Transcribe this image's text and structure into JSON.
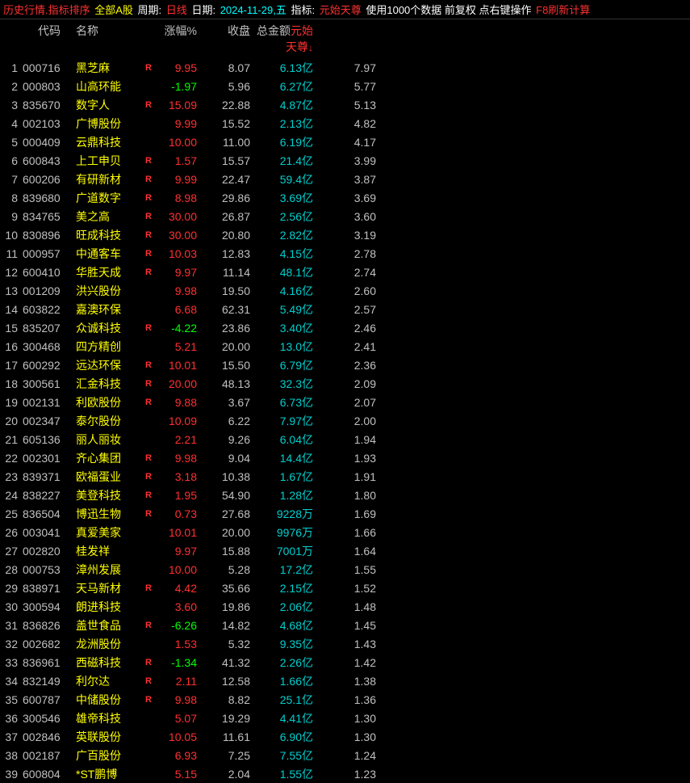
{
  "header": {
    "seg1": "历史行情.指标排序",
    "seg2": "全部A股",
    "seg3_label": "周期:",
    "seg3_val": "日线",
    "seg4_label": "日期:",
    "seg4_val": "2024-11-29,五",
    "seg5_label": "指标:",
    "seg5_val": "元始天尊",
    "seg6": "使用1000个数据 前复权 点右键操作",
    "seg7": "F8刷新计算"
  },
  "columns": {
    "code": "代码",
    "name": "名称",
    "chg": "涨幅%",
    "close": "收盘",
    "amount": "总金额",
    "indicator": "元始天尊",
    "arrow": "↓"
  },
  "rows": [
    {
      "idx": "1",
      "code": "000716",
      "name": "黑芝麻",
      "r": "R",
      "chg": "9.95",
      "chgColor": "red",
      "close": "8.07",
      "amount": "6.13亿",
      "indicator": "7.97"
    },
    {
      "idx": "2",
      "code": "000803",
      "name": "山高环能",
      "r": "",
      "chg": "-1.97",
      "chgColor": "green",
      "close": "5.96",
      "amount": "6.27亿",
      "indicator": "5.77"
    },
    {
      "idx": "3",
      "code": "835670",
      "name": "数字人",
      "r": "R",
      "chg": "15.09",
      "chgColor": "red",
      "close": "22.88",
      "amount": "4.87亿",
      "indicator": "5.13"
    },
    {
      "idx": "4",
      "code": "002103",
      "name": "广博股份",
      "r": "",
      "chg": "9.99",
      "chgColor": "red",
      "close": "15.52",
      "amount": "2.13亿",
      "indicator": "4.82"
    },
    {
      "idx": "5",
      "code": "000409",
      "name": "云鼎科技",
      "r": "",
      "chg": "10.00",
      "chgColor": "red",
      "close": "11.00",
      "amount": "6.19亿",
      "indicator": "4.17"
    },
    {
      "idx": "6",
      "code": "600843",
      "name": "上工申贝",
      "r": "R",
      "chg": "1.57",
      "chgColor": "red",
      "close": "15.57",
      "amount": "21.4亿",
      "indicator": "3.99"
    },
    {
      "idx": "7",
      "code": "600206",
      "name": "有研新材",
      "r": "R",
      "chg": "9.99",
      "chgColor": "red",
      "close": "22.47",
      "amount": "59.4亿",
      "indicator": "3.87"
    },
    {
      "idx": "8",
      "code": "839680",
      "name": "广道数字",
      "r": "R",
      "chg": "8.98",
      "chgColor": "red",
      "close": "29.86",
      "amount": "3.69亿",
      "indicator": "3.69"
    },
    {
      "idx": "9",
      "code": "834765",
      "name": "美之高",
      "r": "R",
      "chg": "30.00",
      "chgColor": "red",
      "close": "26.87",
      "amount": "2.56亿",
      "indicator": "3.60"
    },
    {
      "idx": "10",
      "code": "830896",
      "name": "旺成科技",
      "r": "R",
      "chg": "30.00",
      "chgColor": "red",
      "close": "20.80",
      "amount": "2.82亿",
      "indicator": "3.19"
    },
    {
      "idx": "11",
      "code": "000957",
      "name": "中通客车",
      "r": "R",
      "chg": "10.03",
      "chgColor": "red",
      "close": "12.83",
      "amount": "4.15亿",
      "indicator": "2.78"
    },
    {
      "idx": "12",
      "code": "600410",
      "name": "华胜天成",
      "r": "R",
      "chg": "9.97",
      "chgColor": "red",
      "close": "11.14",
      "amount": "48.1亿",
      "indicator": "2.74"
    },
    {
      "idx": "13",
      "code": "001209",
      "name": "洪兴股份",
      "r": "",
      "chg": "9.98",
      "chgColor": "red",
      "close": "19.50",
      "amount": "4.16亿",
      "indicator": "2.60"
    },
    {
      "idx": "14",
      "code": "603822",
      "name": "嘉澳环保",
      "r": "",
      "chg": "6.68",
      "chgColor": "red",
      "close": "62.31",
      "amount": "5.49亿",
      "indicator": "2.57"
    },
    {
      "idx": "15",
      "code": "835207",
      "name": "众诚科技",
      "r": "R",
      "chg": "-4.22",
      "chgColor": "green",
      "close": "23.86",
      "amount": "3.40亿",
      "indicator": "2.46"
    },
    {
      "idx": "16",
      "code": "300468",
      "name": "四方精创",
      "r": "",
      "chg": "5.21",
      "chgColor": "red",
      "close": "20.00",
      "amount": "13.0亿",
      "indicator": "2.41"
    },
    {
      "idx": "17",
      "code": "600292",
      "name": "远达环保",
      "r": "R",
      "chg": "10.01",
      "chgColor": "red",
      "close": "15.50",
      "amount": "6.79亿",
      "indicator": "2.36"
    },
    {
      "idx": "18",
      "code": "300561",
      "name": "汇金科技",
      "r": "R",
      "chg": "20.00",
      "chgColor": "red",
      "close": "48.13",
      "amount": "32.3亿",
      "indicator": "2.09"
    },
    {
      "idx": "19",
      "code": "002131",
      "name": "利欧股份",
      "r": "R",
      "chg": "9.88",
      "chgColor": "red",
      "close": "3.67",
      "amount": "6.73亿",
      "indicator": "2.07"
    },
    {
      "idx": "20",
      "code": "002347",
      "name": "泰尔股份",
      "r": "",
      "chg": "10.09",
      "chgColor": "red",
      "close": "6.22",
      "amount": "7.97亿",
      "indicator": "2.00"
    },
    {
      "idx": "21",
      "code": "605136",
      "name": "丽人丽妆",
      "r": "",
      "chg": "2.21",
      "chgColor": "red",
      "close": "9.26",
      "amount": "6.04亿",
      "indicator": "1.94"
    },
    {
      "idx": "22",
      "code": "002301",
      "name": "齐心集团",
      "r": "R",
      "chg": "9.98",
      "chgColor": "red",
      "close": "9.04",
      "amount": "14.4亿",
      "indicator": "1.93"
    },
    {
      "idx": "23",
      "code": "839371",
      "name": "欧福蛋业",
      "r": "R",
      "chg": "3.18",
      "chgColor": "red",
      "close": "10.38",
      "amount": "1.67亿",
      "indicator": "1.91"
    },
    {
      "idx": "24",
      "code": "838227",
      "name": "美登科技",
      "r": "R",
      "chg": "1.95",
      "chgColor": "red",
      "close": "54.90",
      "amount": "1.28亿",
      "indicator": "1.80"
    },
    {
      "idx": "25",
      "code": "836504",
      "name": "博迅生物",
      "r": "R",
      "chg": "0.73",
      "chgColor": "red",
      "close": "27.68",
      "amount": "9228万",
      "indicator": "1.69"
    },
    {
      "idx": "26",
      "code": "003041",
      "name": "真爱美家",
      "r": "",
      "chg": "10.01",
      "chgColor": "red",
      "close": "20.00",
      "amount": "9976万",
      "indicator": "1.66"
    },
    {
      "idx": "27",
      "code": "002820",
      "name": "桂发祥",
      "r": "",
      "chg": "9.97",
      "chgColor": "red",
      "close": "15.88",
      "amount": "7001万",
      "indicator": "1.64"
    },
    {
      "idx": "28",
      "code": "000753",
      "name": "漳州发展",
      "r": "",
      "chg": "10.00",
      "chgColor": "red",
      "close": "5.28",
      "amount": "17.2亿",
      "indicator": "1.55"
    },
    {
      "idx": "29",
      "code": "838971",
      "name": "天马新材",
      "r": "R",
      "chg": "4.42",
      "chgColor": "red",
      "close": "35.66",
      "amount": "2.15亿",
      "indicator": "1.52"
    },
    {
      "idx": "30",
      "code": "300594",
      "name": "朗进科技",
      "r": "",
      "chg": "3.60",
      "chgColor": "red",
      "close": "19.86",
      "amount": "2.06亿",
      "indicator": "1.48"
    },
    {
      "idx": "31",
      "code": "836826",
      "name": "盖世食品",
      "r": "R",
      "chg": "-6.26",
      "chgColor": "green",
      "close": "14.82",
      "amount": "4.68亿",
      "indicator": "1.45"
    },
    {
      "idx": "32",
      "code": "002682",
      "name": "龙洲股份",
      "r": "",
      "chg": "1.53",
      "chgColor": "red",
      "close": "5.32",
      "amount": "9.35亿",
      "indicator": "1.43"
    },
    {
      "idx": "33",
      "code": "836961",
      "name": "西磁科技",
      "r": "R",
      "chg": "-1.34",
      "chgColor": "green",
      "close": "41.32",
      "amount": "2.26亿",
      "indicator": "1.42"
    },
    {
      "idx": "34",
      "code": "832149",
      "name": "利尔达",
      "r": "R",
      "chg": "2.11",
      "chgColor": "red",
      "close": "12.58",
      "amount": "1.66亿",
      "indicator": "1.38"
    },
    {
      "idx": "35",
      "code": "600787",
      "name": "中储股份",
      "r": "R",
      "chg": "9.98",
      "chgColor": "red",
      "close": "8.82",
      "amount": "25.1亿",
      "indicator": "1.36"
    },
    {
      "idx": "36",
      "code": "300546",
      "name": "雄帝科技",
      "r": "",
      "chg": "5.07",
      "chgColor": "red",
      "close": "19.29",
      "amount": "4.41亿",
      "indicator": "1.30"
    },
    {
      "idx": "37",
      "code": "002846",
      "name": "英联股份",
      "r": "",
      "chg": "10.05",
      "chgColor": "red",
      "close": "11.61",
      "amount": "6.90亿",
      "indicator": "1.30"
    },
    {
      "idx": "38",
      "code": "002187",
      "name": "广百股份",
      "r": "",
      "chg": "6.93",
      "chgColor": "red",
      "close": "7.25",
      "amount": "7.55亿",
      "indicator": "1.24"
    },
    {
      "idx": "39",
      "code": "600804",
      "name": "*ST鹏博",
      "r": "",
      "chg": "5.15",
      "chgColor": "red",
      "close": "2.04",
      "amount": "1.55亿",
      "indicator": "1.23"
    }
  ]
}
